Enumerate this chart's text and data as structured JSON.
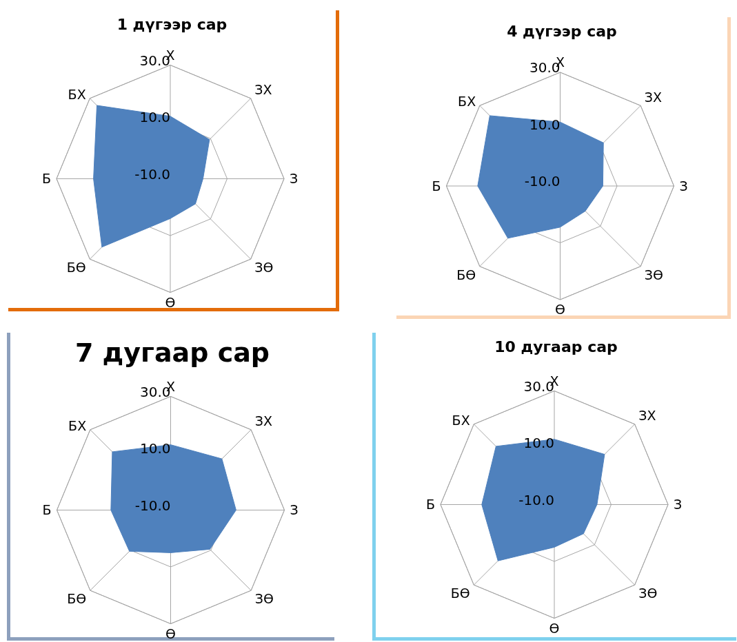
{
  "chart_data": [
    {
      "type": "radar",
      "title": "1 дүгээр сар",
      "categories": [
        "Х",
        "ЗХ",
        "З",
        "ЗӨ",
        "Ө",
        "БӨ",
        "Б",
        "БХ"
      ],
      "ylim": [
        -10,
        30
      ],
      "yticks": [
        {
          "value": -10,
          "label": "-10.0"
        },
        {
          "value": 10,
          "label": "10.0"
        },
        {
          "value": 30,
          "label": "30.0"
        }
      ],
      "grid": true,
      "series": [
        {
          "color": "#4f81bd",
          "values": [
            12,
            9.5,
            1.5,
            2.5,
            4,
            24,
            17,
            26.5
          ]
        }
      ]
    },
    {
      "type": "radar",
      "title": "4 дүгээр сар",
      "categories": [
        "Х",
        "ЗХ",
        "З",
        "ЗӨ",
        "Ө",
        "БӨ",
        "Б",
        "БХ"
      ],
      "ylim": [
        -10,
        30
      ],
      "yticks": [
        {
          "value": -10,
          "label": "-10.0"
        },
        {
          "value": 10,
          "label": "10.0"
        },
        {
          "value": 30,
          "label": "30.0"
        }
      ],
      "grid": true,
      "series": [
        {
          "color": "#4f81bd",
          "values": [
            12.5,
            11.5,
            5,
            2.5,
            4.5,
            16,
            19,
            25
          ]
        }
      ]
    },
    {
      "type": "radar",
      "title": "7 дугаар сар",
      "categories": [
        "Х",
        "ЗХ",
        "З",
        "ЗӨ",
        "Ө",
        "БӨ",
        "Б",
        "БХ"
      ],
      "ylim": [
        -10,
        30
      ],
      "yticks": [
        {
          "value": -10,
          "label": "-10.0"
        },
        {
          "value": 10,
          "label": "10.0"
        },
        {
          "value": 30,
          "label": "30.0"
        }
      ],
      "grid": true,
      "series": [
        {
          "color": "#4f81bd",
          "values": [
            13,
            15.5,
            13,
            9.5,
            5,
            10.5,
            11,
            19
          ]
        }
      ]
    },
    {
      "type": "radar",
      "title": "10 дугаар сар",
      "categories": [
        "Х",
        "ЗХ",
        "З",
        "ЗӨ",
        "Ө",
        "БӨ",
        "Б",
        "БХ"
      ],
      "ylim": [
        -10,
        30
      ],
      "yticks": [
        {
          "value": -10,
          "label": "-10.0"
        },
        {
          "value": 10,
          "label": "10.0"
        },
        {
          "value": 30,
          "label": "30.0"
        }
      ],
      "grid": true,
      "series": [
        {
          "color": "#4f81bd",
          "values": [
            13,
            15,
            5,
            4.5,
            5,
            18,
            15.5,
            19
          ]
        }
      ]
    }
  ]
}
